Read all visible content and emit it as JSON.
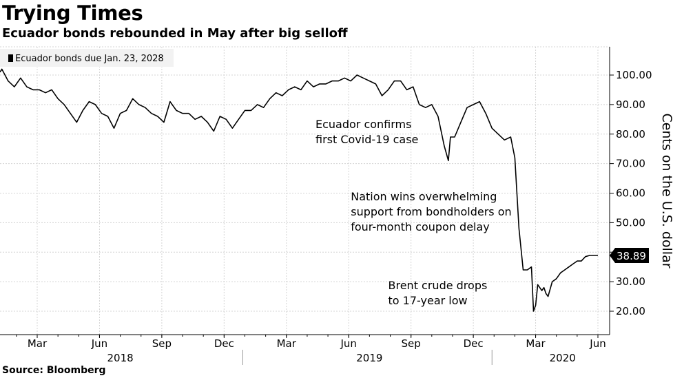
{
  "chart_data": {
    "type": "line",
    "title": "Trying Times",
    "subtitle": "Ecuador bonds rebounded in May after big selloff",
    "source": "Source: Bloomberg",
    "ylabel": "Cents on the U.S. dollar",
    "ylim": [
      12,
      108
    ],
    "yticks": [
      20,
      30,
      40,
      50,
      60,
      70,
      80,
      90,
      100
    ],
    "ytick_labels": [
      "20.00",
      "30.00",
      "40.00",
      "50.00",
      "60.00",
      "70.00",
      "80.00",
      "90.00",
      "100.00"
    ],
    "x_range_months": [
      0,
      29.5
    ],
    "month_ticks": [
      {
        "m": 2,
        "label": "Mar"
      },
      {
        "m": 5,
        "label": "Jun"
      },
      {
        "m": 8,
        "label": "Sep"
      },
      {
        "m": 11,
        "label": "Dec"
      },
      {
        "m": 14,
        "label": "Mar"
      },
      {
        "m": 17,
        "label": "Jun"
      },
      {
        "m": 20,
        "label": "Sep"
      },
      {
        "m": 23,
        "label": "Dec"
      },
      {
        "m": 26,
        "label": "Mar"
      },
      {
        "m": 29,
        "label": "Jun"
      }
    ],
    "year_labels": [
      {
        "m": 6,
        "label": "2018"
      },
      {
        "m": 18,
        "label": "2019"
      },
      {
        "m": 27.3,
        "label": "2020"
      }
    ],
    "year_separators": [
      12,
      24
    ],
    "legend": "Ecuador bonds due Jan. 23, 2028",
    "last_value_label": "38.89",
    "last_value": 38.89,
    "annotations": [
      {
        "lines": [
          "Ecuador confirms",
          "first Covid-19 case"
        ],
        "m": 15.4,
        "y": 82
      },
      {
        "lines": [
          "Nation wins overwhelming",
          "support from bondholders on",
          "four-month coupon delay"
        ],
        "m": 17.1,
        "y": 57.5
      },
      {
        "lines": [
          "Brent crude drops",
          "to 17-year low"
        ],
        "m": 18.9,
        "y": 27.5
      }
    ],
    "series": [
      {
        "name": "Ecuador bonds due Jan. 23, 2028",
        "x": [
          0,
          0.3,
          0.6,
          0.9,
          1.2,
          1.5,
          1.8,
          2.1,
          2.4,
          2.7,
          3.0,
          3.3,
          3.6,
          3.9,
          4.2,
          4.5,
          4.8,
          5.1,
          5.4,
          5.7,
          6.0,
          6.3,
          6.6,
          6.9,
          7.2,
          7.5,
          7.8,
          8.1,
          8.4,
          8.7,
          9.0,
          9.3,
          9.6,
          9.9,
          10.2,
          10.5,
          10.8,
          11.1,
          11.4,
          11.7,
          12.0,
          12.3,
          12.6,
          12.9,
          13.2,
          13.5,
          13.8,
          14.1,
          14.4,
          14.7,
          15.0,
          15.3,
          15.6,
          15.9,
          16.2,
          16.5,
          16.8,
          17.1,
          17.4,
          17.7,
          18.0,
          18.3,
          18.6,
          18.9,
          19.2,
          19.5,
          19.8,
          20.1,
          20.4,
          20.7,
          21.0,
          21.3,
          21.6,
          21.8,
          21.9,
          22.1,
          22.4,
          22.7,
          23.0,
          23.3,
          23.6,
          23.9,
          24.2,
          24.5,
          24.8,
          25.0,
          25.2,
          25.4,
          25.6,
          25.8,
          25.9,
          26.0,
          26.1,
          26.2,
          26.3,
          26.4,
          26.5,
          26.6,
          26.8,
          27.0,
          27.2,
          27.4,
          27.6,
          27.8,
          28.0,
          28.2,
          28.4,
          28.6,
          28.8,
          29.0
        ],
        "y": [
          101,
          102,
          98,
          96,
          99,
          96,
          95,
          95,
          94,
          95,
          92,
          90,
          87,
          84,
          88,
          91,
          90,
          87,
          86,
          82,
          87,
          88,
          92,
          90,
          89,
          87,
          86,
          84,
          91,
          88,
          87,
          87,
          85,
          86,
          84,
          81,
          86,
          85,
          82,
          85,
          88,
          88,
          90,
          89,
          92,
          94,
          93,
          95,
          96,
          95,
          98,
          96,
          97,
          97,
          98,
          98,
          99,
          98,
          100,
          99,
          98,
          97,
          93,
          95,
          98,
          98,
          95,
          96,
          90,
          89,
          90,
          86,
          76,
          71,
          79,
          79,
          84,
          89,
          90,
          91,
          87,
          82,
          80,
          78,
          79,
          72,
          48,
          34,
          34,
          35,
          20,
          22,
          29,
          28,
          27,
          28,
          26,
          25,
          30,
          31,
          33,
          34,
          35,
          36,
          37,
          37,
          38.5,
          38.9,
          38.9,
          38.89
        ]
      }
    ]
  }
}
